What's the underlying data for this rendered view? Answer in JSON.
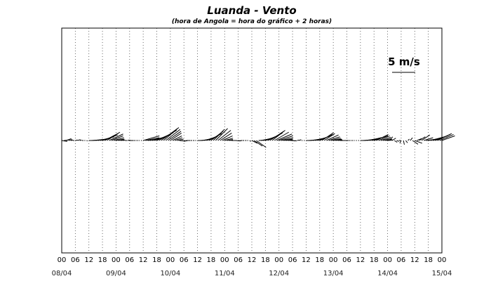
{
  "chart_data": {
    "type": "vector",
    "title": "Luanda - Vento",
    "subtitle": "(hora de Angola = hora do gráfico + 2 horas)",
    "x_hours_start": 0,
    "x_hours_end": 168,
    "x_tick_step_hours": 6,
    "hour_tick_labels": [
      "00",
      "06",
      "12",
      "18",
      "00",
      "06",
      "12",
      "18",
      "00",
      "06",
      "12",
      "18",
      "00",
      "06",
      "12",
      "18",
      "00",
      "06",
      "12",
      "18",
      "00",
      "06",
      "12",
      "18",
      "00",
      "06",
      "12",
      "18",
      "00"
    ],
    "date_labels": [
      "08/04",
      "09/04",
      "10/04",
      "11/04",
      "12/04",
      "13/04",
      "14/04",
      "15/04"
    ],
    "date_label_hours": [
      0,
      24,
      48,
      72,
      96,
      120,
      144,
      168
    ],
    "grid": "vertical dotted every 6 h",
    "scale_label": "5 m/s",
    "scale_speed_ms": 5,
    "vectors_units": "u, v in m/s (east, north)",
    "vectors": [
      [
        0,
        1.2,
        -0.2
      ],
      [
        1,
        0.9,
        0.1
      ],
      [
        2,
        1.1,
        0.4
      ],
      [
        3,
        0.8,
        0.2
      ],
      [
        4,
        0.5,
        0.1
      ],
      [
        5,
        0.3,
        0.0
      ],
      [
        6,
        0.5,
        0.1
      ],
      [
        7,
        0.6,
        0.2
      ],
      [
        8,
        0.4,
        0.1
      ],
      [
        9,
        0.3,
        0.0
      ],
      [
        10,
        0.2,
        0.0
      ],
      [
        11,
        0.2,
        -0.1
      ],
      [
        12,
        1.0,
        0.0
      ],
      [
        13,
        1.5,
        0.1
      ],
      [
        14,
        2.0,
        0.2
      ],
      [
        15,
        2.4,
        0.3
      ],
      [
        16,
        2.8,
        0.5
      ],
      [
        17,
        3.0,
        0.8
      ],
      [
        18,
        3.3,
        1.2
      ],
      [
        19,
        3.0,
        1.6
      ],
      [
        20,
        2.8,
        1.8
      ],
      [
        21,
        3.0,
        1.4
      ],
      [
        22,
        2.5,
        1.0
      ],
      [
        23,
        2.2,
        0.6
      ],
      [
        24,
        1.8,
        0.3
      ],
      [
        25,
        1.2,
        0.2
      ],
      [
        26,
        0.8,
        0.1
      ],
      [
        27,
        0.5,
        0.1
      ],
      [
        28,
        0.4,
        0.0
      ],
      [
        29,
        0.6,
        0.1
      ],
      [
        30,
        0.5,
        0.0
      ],
      [
        31,
        0.4,
        0.0
      ],
      [
        32,
        0.3,
        0.0
      ],
      [
        33,
        0.3,
        0.0
      ],
      [
        34,
        0.2,
        0.0
      ],
      [
        35,
        0.2,
        0.0
      ],
      [
        36,
        3.5,
        1.0
      ],
      [
        37,
        3.0,
        0.6
      ],
      [
        38,
        2.6,
        0.3
      ],
      [
        39,
        2.8,
        0.6
      ],
      [
        40,
        3.0,
        0.8
      ],
      [
        41,
        3.3,
        1.2
      ],
      [
        42,
        3.6,
        1.7
      ],
      [
        43,
        3.8,
        2.2
      ],
      [
        44,
        3.5,
        2.6
      ],
      [
        45,
        3.3,
        2.8
      ],
      [
        46,
        3.1,
        2.4
      ],
      [
        47,
        2.8,
        2.0
      ],
      [
        48,
        2.4,
        1.6
      ],
      [
        49,
        2.0,
        1.0
      ],
      [
        50,
        1.6,
        0.6
      ],
      [
        51,
        1.4,
        0.3
      ],
      [
        52,
        1.0,
        -0.1
      ],
      [
        53,
        0.8,
        -0.2
      ],
      [
        54,
        0.7,
        -0.1
      ],
      [
        55,
        0.5,
        0.0
      ],
      [
        56,
        0.4,
        0.0
      ],
      [
        57,
        0.3,
        0.0
      ],
      [
        58,
        0.3,
        0.0
      ],
      [
        59,
        0.2,
        0.0
      ],
      [
        60,
        1.0,
        0.0
      ],
      [
        61,
        1.4,
        0.1
      ],
      [
        62,
        1.8,
        0.3
      ],
      [
        63,
        2.2,
        0.6
      ],
      [
        64,
        2.5,
        1.0
      ],
      [
        65,
        2.8,
        1.5
      ],
      [
        66,
        2.6,
        2.0
      ],
      [
        67,
        2.4,
        2.4
      ],
      [
        68,
        2.6,
        2.6
      ],
      [
        69,
        2.8,
        2.2
      ],
      [
        70,
        2.5,
        1.6
      ],
      [
        71,
        2.2,
        1.0
      ],
      [
        72,
        1.8,
        0.5
      ],
      [
        73,
        1.3,
        0.2
      ],
      [
        74,
        0.8,
        0.1
      ],
      [
        75,
        0.5,
        0.0
      ],
      [
        76,
        0.6,
        0.0
      ],
      [
        77,
        0.8,
        -0.1
      ],
      [
        78,
        0.6,
        -0.1
      ],
      [
        79,
        0.4,
        0.0
      ],
      [
        80,
        0.3,
        0.0
      ],
      [
        81,
        0.3,
        0.0
      ],
      [
        82,
        0.2,
        0.0
      ],
      [
        83,
        0.3,
        -0.2
      ],
      [
        84,
        1.2,
        -0.6
      ],
      [
        85,
        1.8,
        -1.2
      ],
      [
        86,
        2.1,
        -1.5
      ],
      [
        87,
        1.8,
        0.1
      ],
      [
        88,
        2.2,
        0.4
      ],
      [
        89,
        2.6,
        0.7
      ],
      [
        90,
        2.9,
        1.1
      ],
      [
        91,
        3.2,
        1.6
      ],
      [
        92,
        3.0,
        2.0
      ],
      [
        93,
        2.8,
        2.2
      ],
      [
        94,
        3.1,
        1.8
      ],
      [
        95,
        3.3,
        1.4
      ],
      [
        96,
        3.0,
        1.0
      ],
      [
        97,
        2.6,
        0.6
      ],
      [
        98,
        2.0,
        0.3
      ],
      [
        99,
        1.5,
        0.2
      ],
      [
        100,
        1.0,
        0.1
      ],
      [
        101,
        0.8,
        0.0
      ],
      [
        102,
        0.6,
        -0.1
      ],
      [
        103,
        0.4,
        -0.1
      ],
      [
        104,
        0.5,
        0.1
      ],
      [
        105,
        0.4,
        0.2
      ],
      [
        106,
        0.2,
        0.0
      ],
      [
        107,
        0.2,
        0.0
      ],
      [
        108,
        1.0,
        0.0
      ],
      [
        109,
        1.3,
        0.1
      ],
      [
        110,
        1.6,
        0.2
      ],
      [
        111,
        2.0,
        0.4
      ],
      [
        112,
        2.3,
        0.6
      ],
      [
        113,
        2.6,
        0.9
      ],
      [
        114,
        2.8,
        1.3
      ],
      [
        115,
        2.5,
        1.7
      ],
      [
        116,
        2.3,
        1.5
      ],
      [
        117,
        2.6,
        1.2
      ],
      [
        118,
        2.4,
        0.8
      ],
      [
        119,
        2.1,
        0.5
      ],
      [
        120,
        1.8,
        0.3
      ],
      [
        121,
        1.4,
        0.2
      ],
      [
        122,
        1.0,
        0.1
      ],
      [
        123,
        0.8,
        0.0
      ],
      [
        124,
        0.6,
        0.0
      ],
      [
        125,
        0.5,
        0.0
      ],
      [
        126,
        0.4,
        0.0
      ],
      [
        127,
        0.3,
        0.0
      ],
      [
        128,
        0.3,
        0.0
      ],
      [
        129,
        0.2,
        0.0
      ],
      [
        130,
        0.2,
        0.0
      ],
      [
        131,
        0.2,
        0.0
      ],
      [
        132,
        1.0,
        0.0
      ],
      [
        133,
        1.4,
        0.1
      ],
      [
        134,
        1.8,
        0.2
      ],
      [
        135,
        2.2,
        0.4
      ],
      [
        136,
        2.5,
        0.6
      ],
      [
        137,
        2.8,
        0.8
      ],
      [
        138,
        3.0,
        1.0
      ],
      [
        139,
        2.6,
        1.3
      ],
      [
        140,
        2.4,
        1.0
      ],
      [
        141,
        2.2,
        0.7
      ],
      [
        142,
        1.8,
        0.4
      ],
      [
        143,
        1.5,
        0.2
      ],
      [
        144,
        1.2,
        0.1
      ],
      [
        145,
        0.6,
        0.8
      ],
      [
        146,
        0.8,
        0.5
      ],
      [
        147,
        0.6,
        -0.4
      ],
      [
        148,
        0.5,
        -0.2
      ],
      [
        149,
        0.4,
        0.0
      ],
      [
        150,
        -0.3,
        -0.6
      ],
      [
        151,
        0.2,
        -0.9
      ],
      [
        152,
        0.4,
        -0.5
      ],
      [
        153,
        0.3,
        0.3
      ],
      [
        154,
        0.5,
        0.6
      ],
      [
        155,
        1.2,
        -0.8
      ],
      [
        156,
        1.6,
        -0.6
      ],
      [
        157,
        1.0,
        0.4
      ],
      [
        158,
        1.3,
        0.8
      ],
      [
        159,
        1.8,
        1.2
      ],
      [
        160,
        2.0,
        0.6
      ],
      [
        161,
        2.5,
        0.3
      ],
      [
        162,
        2.8,
        0.5
      ],
      [
        163,
        3.0,
        0.8
      ],
      [
        164,
        3.2,
        1.0
      ],
      [
        165,
        3.3,
        1.3
      ],
      [
        166,
        3.1,
        1.5
      ],
      [
        167,
        3.0,
        1.3
      ],
      [
        168,
        2.8,
        1.0
      ]
    ]
  }
}
